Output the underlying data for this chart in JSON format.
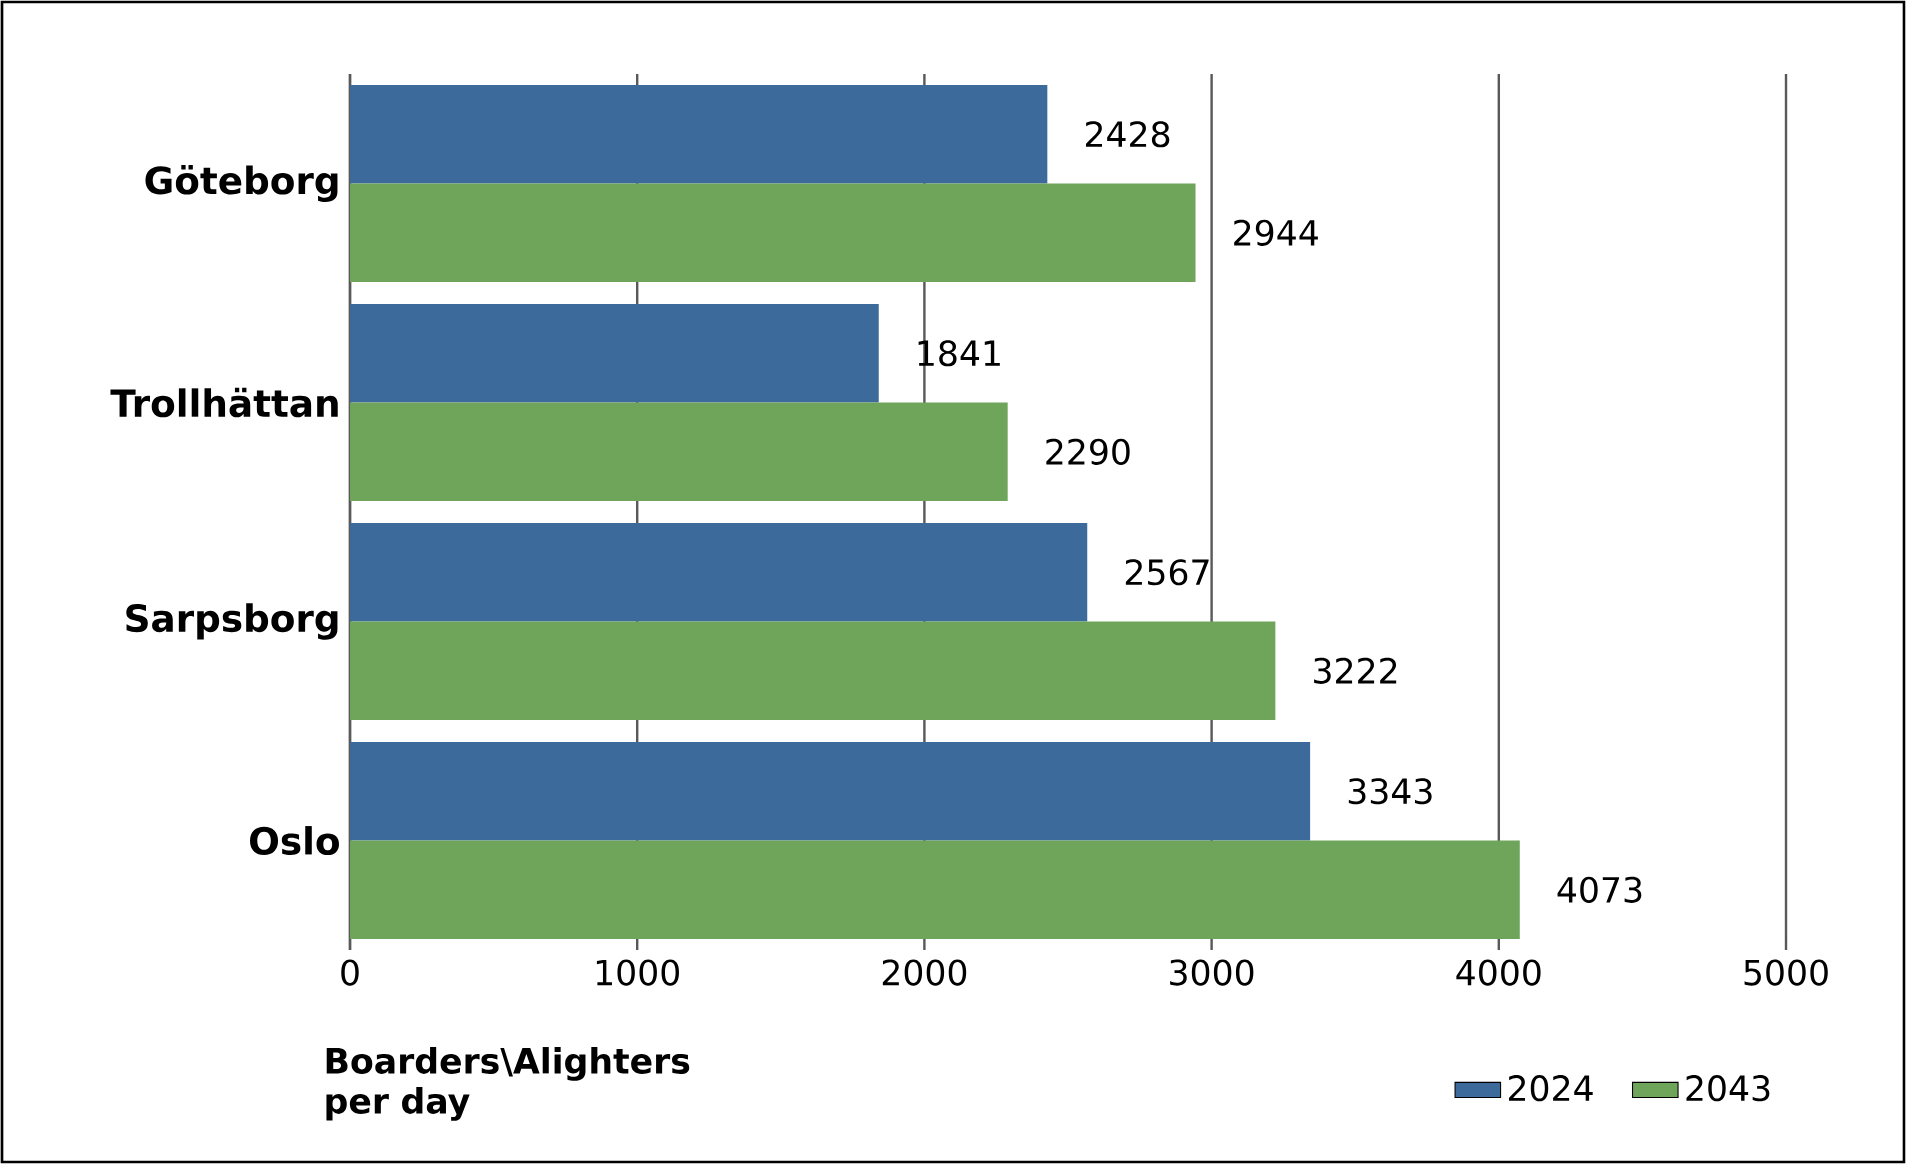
{
  "chart_data": {
    "type": "bar",
    "orientation": "horizontal",
    "xlabel": "Boarders\\Alighters per day",
    "categories": [
      "Göteborg",
      "Trollhättan",
      "Sarpsborg",
      "Oslo"
    ],
    "series": [
      {
        "name": "2024",
        "color": "#3b6a9b",
        "values": [
          2428,
          1841,
          2567,
          3343
        ]
      },
      {
        "name": "2043",
        "color": "#6ea55a",
        "values": [
          2944,
          2290,
          3222,
          4073
        ]
      }
    ],
    "xlim": [
      0,
      5000
    ],
    "xticks": [
      0,
      1000,
      2000,
      3000,
      4000,
      5000
    ],
    "grid": "x",
    "legend": "bottom right",
    "data_labels": true
  }
}
